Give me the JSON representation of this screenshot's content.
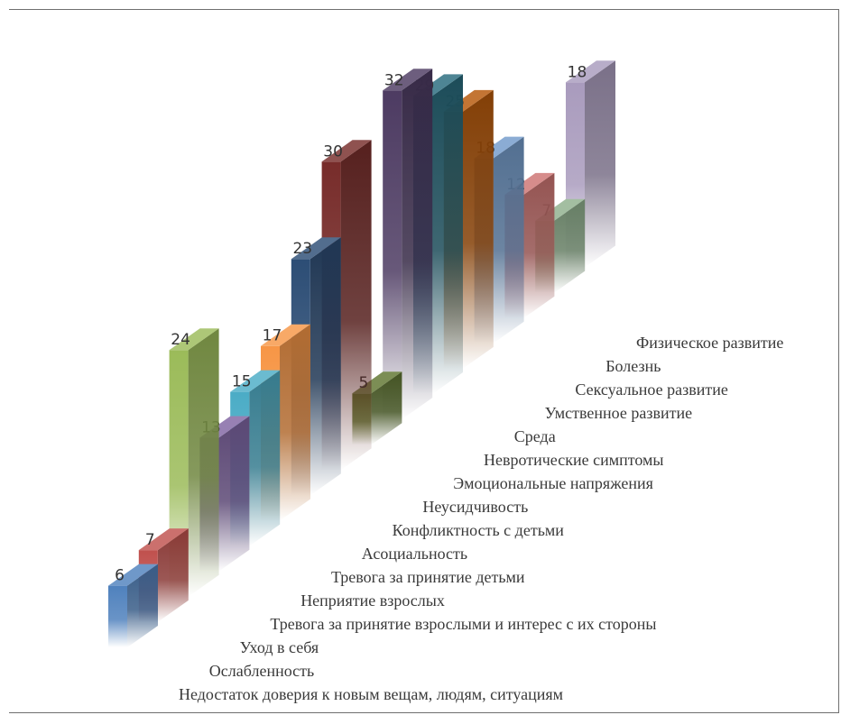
{
  "chart_data": {
    "type": "bar",
    "style": "3d-column-diagonal-depth",
    "title": "",
    "xlabel": "",
    "ylabel": "",
    "grid": false,
    "legend": "none",
    "categories": [
      "Недостаток доверия к новым вещам, людям, ситуациям",
      "Ослабленность",
      "Уход в себя",
      "Тревога за принятие  взрослыми и интерес с их  стороны",
      "Неприятие взрослых",
      "Тревога за принятие  детьми",
      "Асоциальность",
      "Конфликтность  с детьми",
      "Неусидчивость",
      "Эмоциональные  напряжения",
      "Невротические симптомы",
      "Среда",
      "Умственное развитие",
      "Сексуальное развитие",
      "Болезнь",
      "Физическое развитие"
    ],
    "values": [
      6,
      7,
      24,
      13,
      15,
      17,
      23,
      30,
      5,
      32,
      29,
      25,
      18,
      12,
      7,
      18
    ],
    "colors": [
      "#4f81bd",
      "#c0504d",
      "#9bbb59",
      "#8064a2",
      "#4bacc6",
      "#f79646",
      "#2c4d75",
      "#772c2a",
      "#5f7530",
      "#4d3b62",
      "#276a7c",
      "#b65708",
      "#729aca",
      "#cd7371",
      "#8fb08c",
      "#a99bbd"
    ]
  }
}
